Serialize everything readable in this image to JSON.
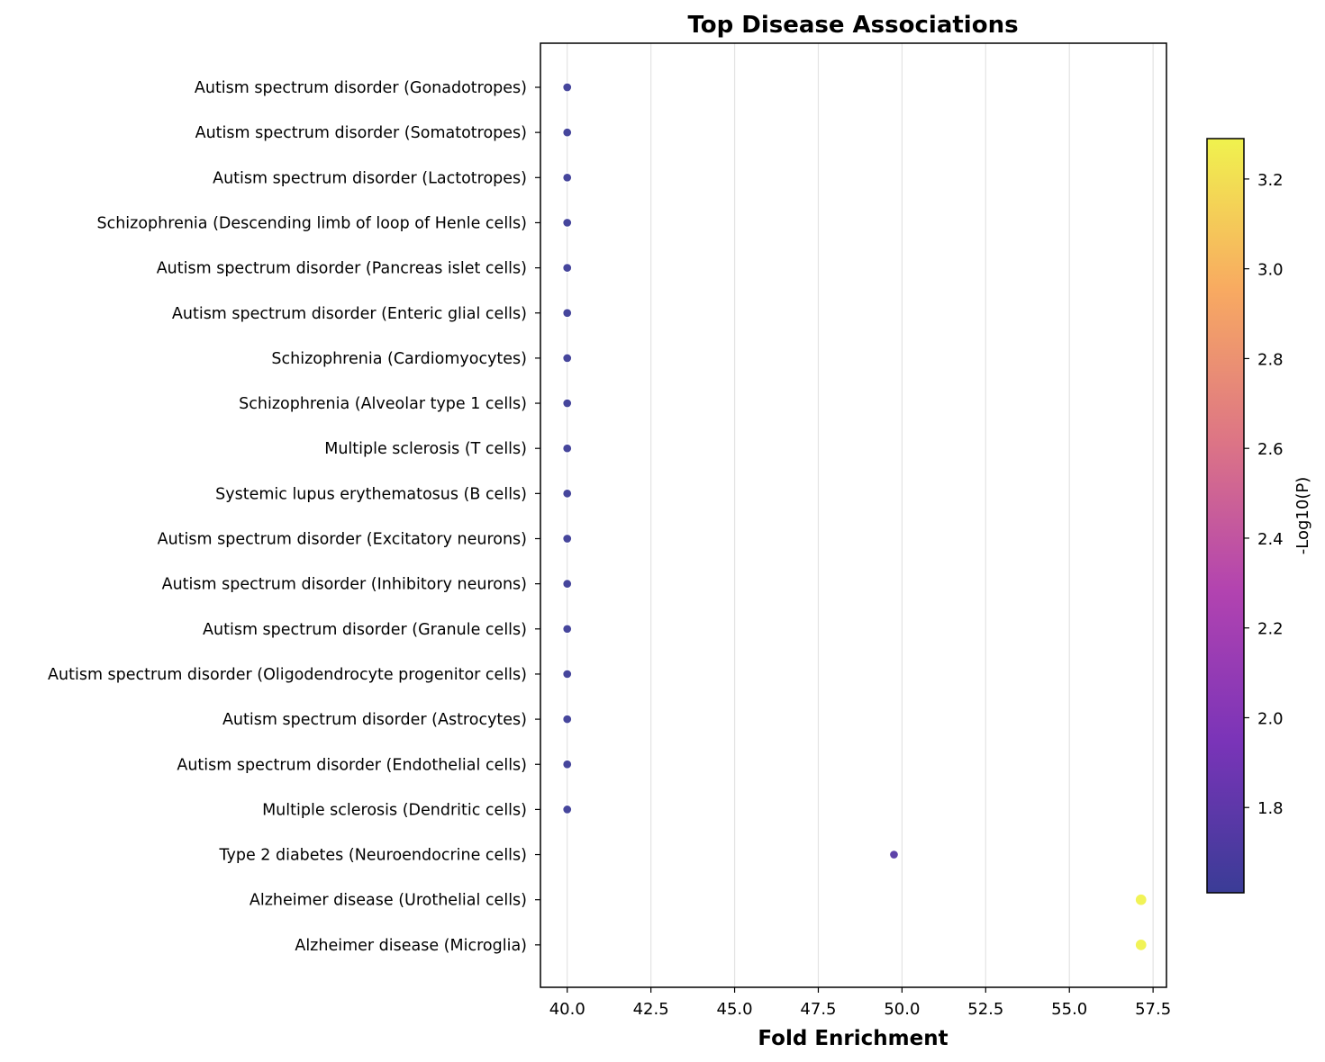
{
  "chart_data": {
    "type": "scatter",
    "title": "Top Disease Associations",
    "xlabel": "Fold Enrichment",
    "ylabel": "",
    "xlim": [
      39.2,
      57.9
    ],
    "xticks": [
      "40.0",
      "42.5",
      "45.0",
      "47.5",
      "50.0",
      "52.5",
      "55.0",
      "57.5"
    ],
    "xtick_values": [
      40.0,
      42.5,
      45.0,
      47.5,
      50.0,
      52.5,
      55.0,
      57.5
    ],
    "grid": "vertical",
    "colormap": "plasma",
    "colorbar": {
      "label": "-Log10(P)",
      "range": [
        1.61,
        3.29
      ],
      "ticks": [
        "1.8",
        "2.0",
        "2.2",
        "2.4",
        "2.6",
        "2.8",
        "3.0",
        "3.2"
      ],
      "tick_values": [
        1.8,
        2.0,
        2.2,
        2.4,
        2.6,
        2.8,
        3.0,
        3.2
      ]
    },
    "categories": [
      "Autism spectrum disorder (Gonadotropes)",
      "Autism spectrum disorder (Somatotropes)",
      "Autism spectrum disorder (Lactotropes)",
      "Schizophrenia (Descending limb of loop of Henle cells)",
      "Autism spectrum disorder (Pancreas islet cells)",
      "Autism spectrum disorder (Enteric glial cells)",
      "Schizophrenia (Cardiomyocytes)",
      "Schizophrenia (Alveolar type 1 cells)",
      "Multiple sclerosis (T cells)",
      "Systemic lupus erythematosus (B cells)",
      "Autism spectrum disorder (Excitatory neurons)",
      "Autism spectrum disorder (Inhibitory neurons)",
      "Autism spectrum disorder (Granule cells)",
      "Autism spectrum disorder (Oligodendrocyte progenitor cells)",
      "Autism spectrum disorder (Astrocytes)",
      "Autism spectrum disorder (Endothelial cells)",
      "Multiple sclerosis (Dendritic cells)",
      "Type 2 diabetes (Neuroendocrine cells)",
      "Alzheimer disease (Urothelial cells)",
      "Alzheimer disease (Microglia)"
    ],
    "x": [
      40.0,
      40.0,
      40.0,
      40.0,
      40.0,
      40.0,
      40.0,
      40.0,
      40.0,
      40.0,
      40.0,
      40.0,
      40.0,
      40.0,
      40.0,
      40.0,
      40.0,
      49.76,
      57.14,
      57.14
    ],
    "color_values": [
      1.62,
      1.62,
      1.62,
      1.62,
      1.62,
      1.62,
      1.62,
      1.62,
      1.62,
      1.62,
      1.62,
      1.62,
      1.62,
      1.62,
      1.62,
      1.62,
      1.62,
      1.75,
      3.29,
      3.29
    ],
    "sizes": [
      1,
      1,
      1,
      1,
      1,
      1,
      1,
      1,
      1,
      1,
      1,
      1,
      1,
      1,
      1,
      1,
      1,
      1,
      2,
      2
    ]
  }
}
